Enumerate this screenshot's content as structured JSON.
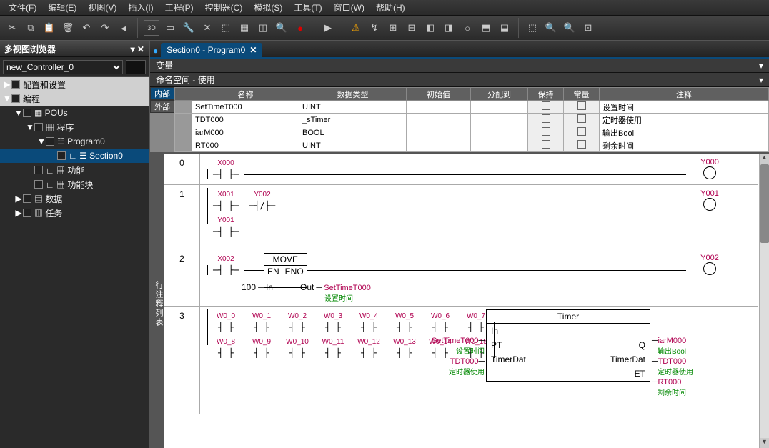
{
  "menu": [
    "文件(F)",
    "编辑(E)",
    "视图(V)",
    "插入(I)",
    "工程(P)",
    "控制器(C)",
    "模拟(S)",
    "工具(T)",
    "窗口(W)",
    "帮助(H)"
  ],
  "sidebar_title": "多视图浏览器",
  "controller": "new_Controller_0",
  "tree": [
    {
      "depth": 0,
      "arrow": "▶",
      "box": true,
      "label": "配置和设置",
      "bg": "#d0d0d0",
      "fg": "#000"
    },
    {
      "depth": 0,
      "arrow": "▼",
      "box": true,
      "label": "编程",
      "bg": "#d0d0d0",
      "fg": "#000"
    },
    {
      "depth": 1,
      "arrow": "▼",
      "box": true,
      "label": "▦ POUs"
    },
    {
      "depth": 2,
      "arrow": "▼",
      "box": true,
      "label": "▦ 程序"
    },
    {
      "depth": 3,
      "arrow": "▼",
      "box": true,
      "label": "☳ Program0"
    },
    {
      "depth": 4,
      "arrow": "",
      "box": true,
      "label": "∟ ☰ Section0",
      "sel": true
    },
    {
      "depth": 2,
      "arrow": "",
      "box": true,
      "label": "∟ ▦ 功能"
    },
    {
      "depth": 2,
      "arrow": "",
      "box": true,
      "label": "∟ ▦ 功能块"
    },
    {
      "depth": 1,
      "arrow": "▶",
      "box": true,
      "label": "▤ 数据"
    },
    {
      "depth": 1,
      "arrow": "▶",
      "box": true,
      "label": "▥ 任务"
    }
  ],
  "tab": "Section0 - Program0",
  "sub1": "变量",
  "sub2": "命名空间 - 使用",
  "var_tabs": {
    "active": "内部",
    "inactive": "外部"
  },
  "var_cols": [
    "",
    "名称",
    "数据类型",
    "初始值",
    "分配到",
    "保持",
    "常量",
    "注释"
  ],
  "vars": [
    {
      "name": "SetTimeT000",
      "type": "UINT",
      "init": "",
      "assign": "",
      "keep": false,
      "const": false,
      "comment": "设置时间"
    },
    {
      "name": "TDT000",
      "type": "_sTimer",
      "init": "",
      "assign": "",
      "keep": false,
      "const": false,
      "comment": "定时器使用"
    },
    {
      "name": "iarM000",
      "type": "BOOL",
      "init": "",
      "assign": "",
      "keep": false,
      "const": false,
      "comment": "输出Bool"
    },
    {
      "name": "RT000",
      "type": "UINT",
      "init": "",
      "assign": "",
      "keep": false,
      "const": false,
      "comment": "剩余时间"
    }
  ],
  "ladder_side": "行注释列表",
  "rung0": {
    "in": "X000",
    "out": "Y000"
  },
  "rung1": {
    "c1": "X001",
    "c2": "Y002",
    "c3": "Y001",
    "out": "Y001"
  },
  "rung2": {
    "in": "X002",
    "fb_title": "MOVE",
    "en": "EN",
    "eno": "ENO",
    "inlbl": "In",
    "outlbl": "Out",
    "inval": "100",
    "outvar": "SetTimeT000",
    "outcomment": "设置时间",
    "out": "Y002"
  },
  "rung3": {
    "row1": [
      "W0_0",
      "W0_1",
      "W0_2",
      "W0_3",
      "W0_4",
      "W0_5",
      "W0_6",
      "W0_7"
    ],
    "row2": [
      "W0_8",
      "W0_9",
      "W0_10",
      "W0_11",
      "W0_12",
      "W0_13",
      "W0_14",
      "W0_15"
    ],
    "timer": {
      "title": "Timer",
      "in": "In",
      "pt": "PT",
      "pt_var": "SetTimeT000",
      "pt_c": "设置时间",
      "td": "TimerDat",
      "td_var": "TDT000",
      "td_c": "定时器使用",
      "q": "Q",
      "q_var": "iarM000",
      "q_c": "输出Bool",
      "tdo": "TimerDat",
      "tdo_var": "TDT000",
      "tdo_c": "定时器使用",
      "et": "ET",
      "et_var": "RT000",
      "et_c": "剩余时间"
    }
  }
}
